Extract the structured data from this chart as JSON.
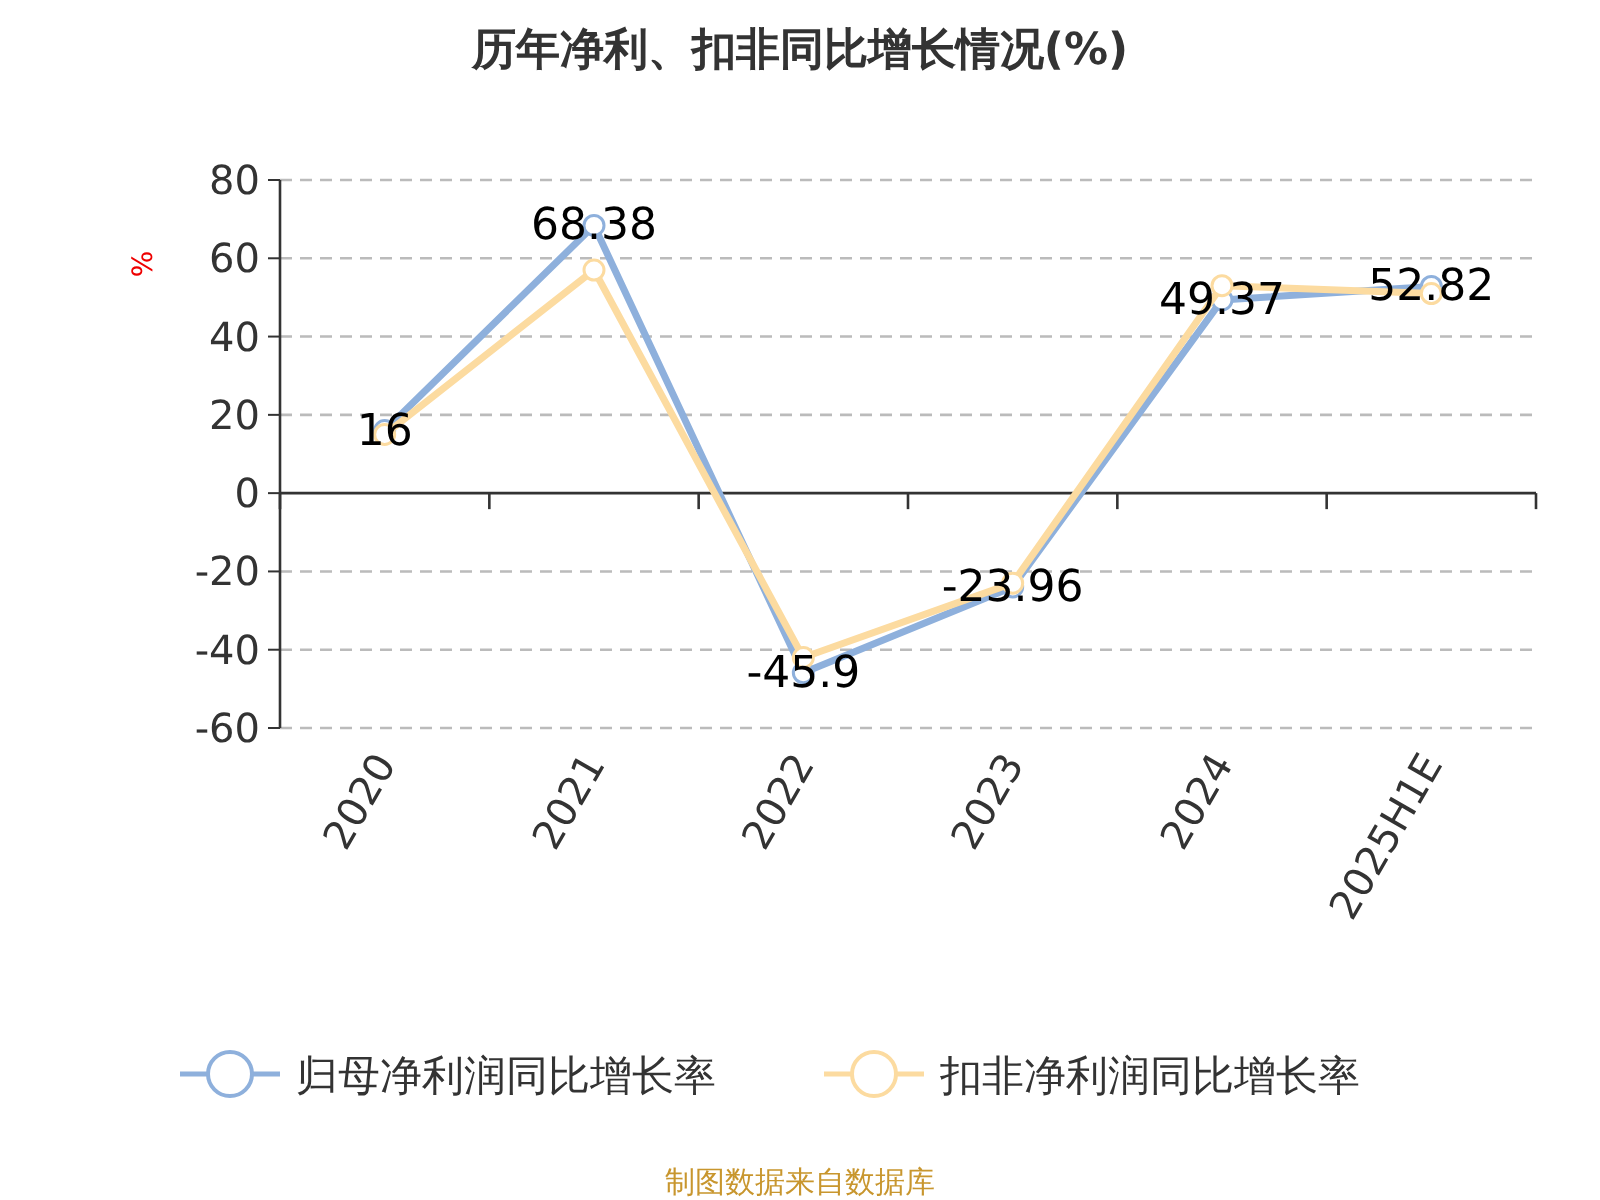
{
  "chart_data": {
    "type": "line",
    "title": "历年净利、扣非同比增长情况(%)",
    "ylabel": "%",
    "categories": [
      "2020",
      "2021",
      "2022",
      "2023",
      "2024",
      "2025H1E"
    ],
    "series": [
      {
        "name": "归母净利润同比增长率",
        "color": "#8eb0dc",
        "values": [
          16,
          68.38,
          -45.9,
          -23.96,
          49.37,
          52.82
        ],
        "value_labels": [
          "16",
          "68.38",
          "-45.9",
          "-23.96",
          "49.37",
          "52.82"
        ]
      },
      {
        "name": "扣非净利润同比增长率",
        "color": "#fcdba0",
        "values": [
          15,
          57,
          -42,
          -23,
          53,
          51
        ]
      }
    ],
    "ylim": [
      -60,
      80
    ],
    "yticks": [
      -60,
      -40,
      -20,
      0,
      20,
      40,
      60,
      80
    ],
    "grid": "y",
    "legend": "bottom",
    "marker": "circle",
    "line_style": "solid",
    "annotations": [
      "制图数据来自数据库"
    ]
  }
}
